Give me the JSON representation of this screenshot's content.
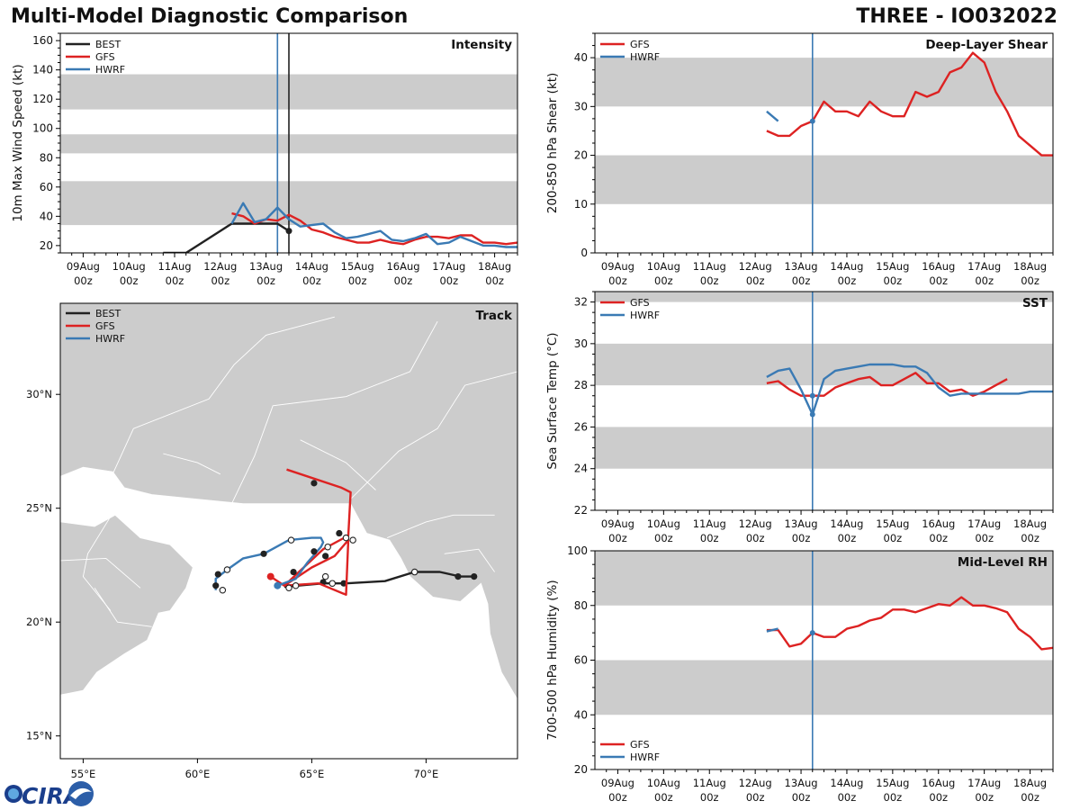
{
  "header": {
    "title": "Multi-Model Diagnostic Comparison",
    "storm_id": "THREE - IO032022"
  },
  "colors": {
    "BEST": "#222222",
    "GFS": "#dd2222",
    "HWRF": "#3a7ab4",
    "band": "#cccccc",
    "land": "#cccccc"
  },
  "time_axis": {
    "tick_labels": [
      [
        "09Aug",
        "00z"
      ],
      [
        "10Aug",
        "00z"
      ],
      [
        "11Aug",
        "00z"
      ],
      [
        "12Aug",
        "00z"
      ],
      [
        "13Aug",
        "00z"
      ],
      [
        "14Aug",
        "00z"
      ],
      [
        "15Aug",
        "00z"
      ],
      [
        "16Aug",
        "00z"
      ],
      [
        "17Aug",
        "00z"
      ],
      [
        "18Aug",
        "00z"
      ]
    ],
    "range_days_from_09Aug00z": [
      -0.5,
      9.5
    ],
    "vline_hwrf": 4.25,
    "vline_best": 4.5
  },
  "chart_data": [
    {
      "id": "intensity",
      "type": "line",
      "title": "Intensity",
      "ylabel": "10m Max Wind Speed (kt)",
      "ylim": [
        15,
        165
      ],
      "yticks": [
        20,
        40,
        60,
        80,
        100,
        120,
        140,
        160
      ],
      "bands": [
        [
          34,
          64
        ],
        [
          83,
          96
        ],
        [
          113,
          137
        ]
      ],
      "legend": [
        "BEST",
        "GFS",
        "HWRF"
      ],
      "legend_position": "top-left",
      "series": [
        {
          "name": "BEST",
          "x": [
            1.75,
            2.25,
            3.25,
            4.25,
            4.5
          ],
          "y": [
            15,
            15,
            35,
            35,
            30
          ],
          "end_marker": true
        },
        {
          "name": "GFS",
          "x": [
            3.25,
            3.5,
            3.75,
            4.0,
            4.25,
            4.5,
            4.75,
            5.0,
            5.25,
            5.5,
            5.75,
            6.0,
            6.25,
            6.5,
            6.75,
            7.0,
            7.25,
            7.5,
            7.75,
            8.0,
            8.25,
            8.5,
            8.75,
            9.0,
            9.25,
            9.5
          ],
          "y": [
            42,
            40,
            35,
            38,
            37,
            41,
            37,
            31,
            29,
            26,
            24,
            22,
            22,
            24,
            22,
            21,
            24,
            26,
            26,
            25,
            27,
            27,
            22,
            22,
            21,
            22
          ]
        },
        {
          "name": "HWRF",
          "x": [
            3.25,
            3.5,
            3.75,
            4.0,
            4.25,
            4.5,
            4.75,
            5.0,
            5.25,
            5.5,
            5.75,
            6.0,
            6.25,
            6.5,
            6.75,
            7.0,
            7.25,
            7.5,
            7.75,
            8.0,
            8.25,
            8.5,
            8.75,
            9.0,
            9.25,
            9.5
          ],
          "y": [
            35,
            49,
            36,
            38,
            46,
            38,
            33,
            34,
            35,
            29,
            25,
            26,
            28,
            30,
            24,
            23,
            25,
            28,
            21,
            22,
            26,
            23,
            20,
            20,
            19,
            19
          ]
        }
      ]
    },
    {
      "id": "shear",
      "type": "line",
      "title": "Deep-Layer Shear",
      "ylabel": "200-850 hPa Shear (kt)",
      "ylim": [
        0,
        45
      ],
      "yticks": [
        0,
        10,
        20,
        30,
        40
      ],
      "bands": [
        [
          10,
          20
        ],
        [
          30,
          40
        ]
      ],
      "legend": [
        "GFS",
        "HWRF"
      ],
      "legend_position": "top-left",
      "series": [
        {
          "name": "GFS",
          "x": [
            3.25,
            3.5,
            3.75,
            4.0,
            4.25,
            4.5,
            4.75,
            5.0,
            5.25,
            5.5,
            5.75,
            6.0,
            6.25,
            6.5,
            6.75,
            7.0,
            7.25,
            7.5,
            7.75,
            8.0,
            8.25,
            8.5,
            8.75,
            9.0,
            9.25,
            9.5
          ],
          "y": [
            25,
            24,
            24,
            26,
            27,
            31,
            29,
            29,
            28,
            31,
            29,
            28,
            28,
            33,
            32,
            33,
            37,
            38,
            41,
            39,
            33,
            29,
            24,
            22,
            20,
            20
          ]
        },
        {
          "name": "HWRF",
          "x": [
            3.25,
            3.5
          ],
          "y": [
            29,
            27
          ]
        }
      ]
    },
    {
      "id": "sst",
      "type": "line",
      "title": "SST",
      "ylabel": "Sea Surface Temp (°C)",
      "ylim": [
        22,
        32.5
      ],
      "yticks": [
        22,
        24,
        26,
        28,
        30,
        32
      ],
      "bands": [
        [
          24,
          26
        ],
        [
          28,
          30
        ],
        [
          32,
          34
        ]
      ],
      "legend": [
        "GFS",
        "HWRF"
      ],
      "legend_position": "top-left",
      "series": [
        {
          "name": "GFS",
          "x": [
            3.25,
            3.5,
            3.75,
            4.0,
            4.25,
            4.5,
            4.75,
            5.0,
            5.25,
            5.5,
            5.75,
            6.0,
            6.25,
            6.5,
            6.75,
            7.0,
            7.25,
            7.5,
            7.75,
            8.0,
            8.25,
            8.5
          ],
          "y": [
            28.1,
            28.2,
            27.8,
            27.5,
            27.5,
            27.5,
            27.9,
            28.1,
            28.3,
            28.4,
            28.0,
            28.0,
            28.3,
            28.6,
            28.1,
            28.1,
            27.7,
            27.8,
            27.5,
            27.7,
            28.0,
            28.3
          ]
        },
        {
          "name": "HWRF",
          "x": [
            3.25,
            3.5,
            3.75,
            4.0,
            4.25,
            4.5,
            4.75,
            5.0,
            5.25,
            5.5,
            5.75,
            6.0,
            6.25,
            6.5,
            6.75,
            7.0,
            7.25,
            7.5,
            7.75,
            8.0,
            8.25,
            8.5,
            8.75,
            9.0,
            9.25,
            9.5
          ],
          "y": [
            28.4,
            28.7,
            28.8,
            27.8,
            26.6,
            28.3,
            28.7,
            28.8,
            28.9,
            29.0,
            29.0,
            29.0,
            28.9,
            28.9,
            28.6,
            27.9,
            27.5,
            27.6,
            27.6,
            27.6,
            27.6,
            27.6,
            27.6,
            27.7,
            27.7,
            27.7
          ],
          "marker_at_x": 4.25
        }
      ]
    },
    {
      "id": "rh",
      "type": "line",
      "title": "Mid-Level RH",
      "ylabel": "700-500 hPa Humidity (%)",
      "ylim": [
        20,
        100
      ],
      "yticks": [
        20,
        40,
        60,
        80,
        100
      ],
      "bands": [
        [
          40,
          60
        ],
        [
          80,
          100
        ]
      ],
      "legend": [
        "GFS",
        "HWRF"
      ],
      "legend_position": "bottom-left",
      "series": [
        {
          "name": "GFS",
          "x": [
            3.25,
            3.5,
            3.75,
            4.0,
            4.25,
            4.5,
            4.75,
            5.0,
            5.25,
            5.5,
            5.75,
            6.0,
            6.25,
            6.5,
            6.75,
            7.0,
            7.25,
            7.5,
            7.75,
            8.0,
            8.25,
            8.5,
            8.75,
            9.0,
            9.25,
            9.5
          ],
          "y": [
            71,
            71,
            65,
            66,
            70,
            68.5,
            68.5,
            71.5,
            72.5,
            74.5,
            75.5,
            78.5,
            78.5,
            77.5,
            79,
            80.5,
            80,
            83,
            80,
            80,
            79,
            77.5,
            71.5,
            68.5,
            64,
            64.5
          ]
        },
        {
          "name": "HWRF",
          "x": [
            3.25,
            3.5
          ],
          "y": [
            70.5,
            71.5
          ]
        }
      ]
    },
    {
      "id": "track",
      "type": "scatter",
      "title": "Track",
      "xlim": [
        54,
        74
      ],
      "ylim": [
        14,
        34
      ],
      "xtick_labels": [
        "55°E",
        "60°E",
        "65°E",
        "70°E"
      ],
      "xtick_values": [
        55,
        60,
        65,
        70
      ],
      "ytick_labels": [
        "15°N",
        "20°N",
        "25°N",
        "30°N"
      ],
      "ytick_values": [
        15,
        20,
        25,
        30
      ],
      "legend": [
        "BEST",
        "GFS",
        "HWRF"
      ],
      "legend_position": "top-left",
      "series": [
        {
          "name": "BEST",
          "lon": [
            72.2,
            71.5,
            70.6,
            69.5,
            68.2,
            66.5,
            65.5,
            63.8
          ],
          "lat": [
            22.0,
            22.0,
            22.2,
            22.2,
            21.8,
            21.7,
            21.7,
            21.55
          ],
          "filled_pts": [
            [
              72.1,
              22.0
            ],
            [
              71.4,
              22.0
            ],
            [
              66.4,
              21.7
            ],
            [
              65.5,
              21.75
            ]
          ],
          "open_pts": [
            [
              69.5,
              22.2
            ],
            [
              65.9,
              21.7
            ]
          ]
        },
        {
          "name": "GFS",
          "lon": [
            63.2,
            63.8,
            65.0,
            66.0,
            66.6,
            66.5,
            65.3,
            63.8,
            65.5,
            66.6,
            66.7,
            66.3,
            63.9
          ],
          "lat": [
            22.0,
            21.6,
            22.4,
            22.9,
            23.6,
            21.2,
            21.7,
            21.6,
            23.2,
            23.8,
            25.7,
            25.9,
            26.7
          ],
          "filled_pts": [
            [
              63.2,
              22.0
            ],
            [
              65.6,
              22.9
            ],
            [
              66.2,
              23.9
            ],
            [
              65.1,
              26.1
            ]
          ],
          "open_pts": [
            [
              66.5,
              23.7
            ],
            [
              64.3,
              21.6
            ]
          ]
        },
        {
          "name": "HWRF",
          "lon": [
            63.5,
            64.3,
            64.8,
            65.4,
            65.5,
            65.4,
            65.0,
            64.0,
            62.9,
            62.0,
            61.3,
            60.8,
            60.8
          ],
          "lat": [
            21.6,
            21.9,
            22.6,
            23.3,
            23.5,
            23.7,
            23.7,
            23.6,
            23.0,
            22.8,
            22.3,
            21.9,
            21.4
          ],
          "filled_pts": [
            [
              62.9,
              23.0
            ],
            [
              60.9,
              22.1
            ],
            [
              60.8,
              21.6
            ],
            [
              64.2,
              22.2
            ],
            [
              65.1,
              23.1
            ]
          ],
          "open_pts": [
            [
              64.1,
              23.6
            ],
            [
              61.3,
              22.3
            ],
            [
              61.1,
              21.4
            ],
            [
              64.0,
              21.5
            ],
            [
              65.6,
              22.0
            ],
            [
              66.8,
              23.6
            ],
            [
              65.7,
              23.3
            ]
          ],
          "start_marker": [
            63.5,
            21.6
          ]
        }
      ]
    }
  ],
  "logo": {
    "text": "CIRA"
  }
}
